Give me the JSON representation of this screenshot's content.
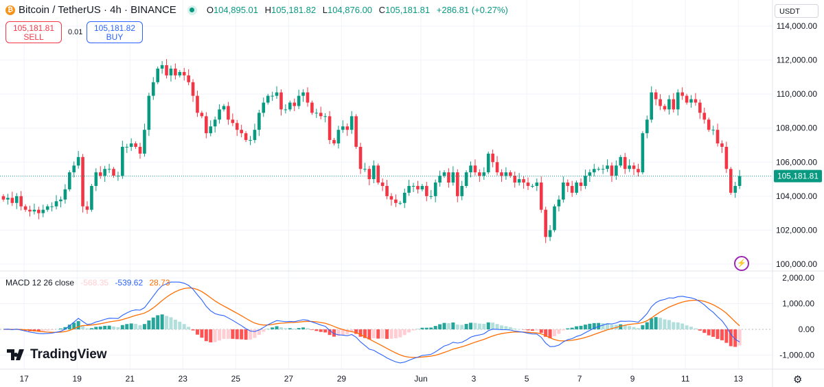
{
  "header": {
    "symbol_title": "Bitcoin / TetherUS · 4h · BINANCE",
    "open_label": "O",
    "open": "104,895.01",
    "high_label": "H",
    "high": "105,181.82",
    "low_label": "L",
    "low": "104,876.00",
    "close_label": "C",
    "close": "105,181.81",
    "change": "+286.81 (+0.27%)"
  },
  "trade": {
    "sell_price": "105,181.81",
    "sell_label": "SELL",
    "spread": "0.01",
    "buy_price": "105,181.82",
    "buy_label": "BUY"
  },
  "currency": "USDT",
  "macd_legend": {
    "label": "MACD 12 26 close",
    "histogram": "-568.35",
    "macd": "-539.62",
    "signal": "28.73"
  },
  "branding": "TradingView",
  "colors": {
    "up": "#089981",
    "down": "#f23645",
    "macd": "#2962ff",
    "signal": "#ff6d00",
    "hist_up_strong": "#26a69a",
    "hist_up_weak": "#b2dfdb",
    "hist_down_strong": "#ff5252",
    "hist_down_weak": "#ffcdd2"
  },
  "icons": {
    "bolt": "lightning-icon",
    "settings": "gear-icon"
  },
  "chart_data": {
    "type": "candlestick",
    "interval": "4h",
    "price_ticks": [
      "114,000.00",
      "112,000.00",
      "110,000.00",
      "108,000.00",
      "106,000.00",
      "104,000.00",
      "102,000.00",
      "100,000.00"
    ],
    "price_tick_values": [
      114000,
      112000,
      110000,
      108000,
      106000,
      104000,
      102000,
      100000
    ],
    "ylim": [
      100000,
      114000
    ],
    "last_price_label": "105,181.81",
    "last_price": 105181.81,
    "macd_ticks": [
      "2,000.00",
      "1,000.00",
      "0.00",
      "-1,000.00"
    ],
    "macd_tick_values": [
      2000,
      1000,
      0,
      -1000
    ],
    "macd_ylim": [
      -1550,
      2600
    ],
    "x_ticks": [
      "17",
      "19",
      "21",
      "23",
      "25",
      "27",
      "29",
      "Jun",
      "3",
      "5",
      "7",
      "9",
      "11",
      "13"
    ],
    "x_tick_candle_index": [
      4.7,
      16.7,
      28.7,
      40.7,
      52.7,
      64.7,
      76.7,
      94.7,
      106.7,
      118.7,
      130.7,
      142.7,
      154.7,
      166.7
    ],
    "closes": [
      103800,
      103900,
      103600,
      104000,
      103400,
      103200,
      103100,
      103200,
      103000,
      103200,
      103400,
      103400,
      103700,
      103800,
      104400,
      105400,
      105800,
      106300,
      103400,
      103200,
      104600,
      105400,
      105200,
      105600,
      105600,
      105200,
      105200,
      106900,
      106900,
      107100,
      106900,
      106500,
      107900,
      109900,
      110700,
      111500,
      111700,
      111100,
      111500,
      111100,
      111300,
      111100,
      110700,
      109900,
      108900,
      108700,
      107700,
      108100,
      108500,
      109100,
      109300,
      108500,
      108300,
      107900,
      107700,
      107300,
      107300,
      107900,
      108900,
      109500,
      109900,
      109900,
      110100,
      109100,
      109100,
      109500,
      109300,
      109900,
      110100,
      109500,
      108900,
      108900,
      108700,
      108700,
      107300,
      107100,
      107900,
      108100,
      107900,
      108700,
      106900,
      105600,
      105600,
      105000,
      105800,
      104800,
      104600,
      104000,
      103800,
      103600,
      103600,
      104200,
      104600,
      104600,
      104400,
      104600,
      104000,
      104000,
      104800,
      105200,
      105400,
      104800,
      105400,
      104000,
      104600,
      105400,
      105800,
      105400,
      105200,
      105400,
      106500,
      106000,
      105400,
      105200,
      105400,
      105200,
      104800,
      105000,
      104800,
      104600,
      104600,
      104800,
      103200,
      101600,
      102000,
      103400,
      103800,
      104800,
      104600,
      104200,
      104800,
      104600,
      105200,
      105400,
      105600,
      105600,
      105600,
      105800,
      105200,
      105800,
      106300,
      105600,
      105800,
      105600,
      105400,
      107700,
      108500,
      110100,
      109700,
      109300,
      109100,
      109700,
      109100,
      110100,
      109900,
      109500,
      109700,
      109500,
      108900,
      108500,
      107900,
      107900,
      107100,
      106900,
      105600,
      104200,
      104600,
      105181.81
    ],
    "first_open": 104000,
    "macd_params": {
      "fast": 12,
      "slow": 26,
      "signal": 9,
      "source": "close"
    }
  }
}
